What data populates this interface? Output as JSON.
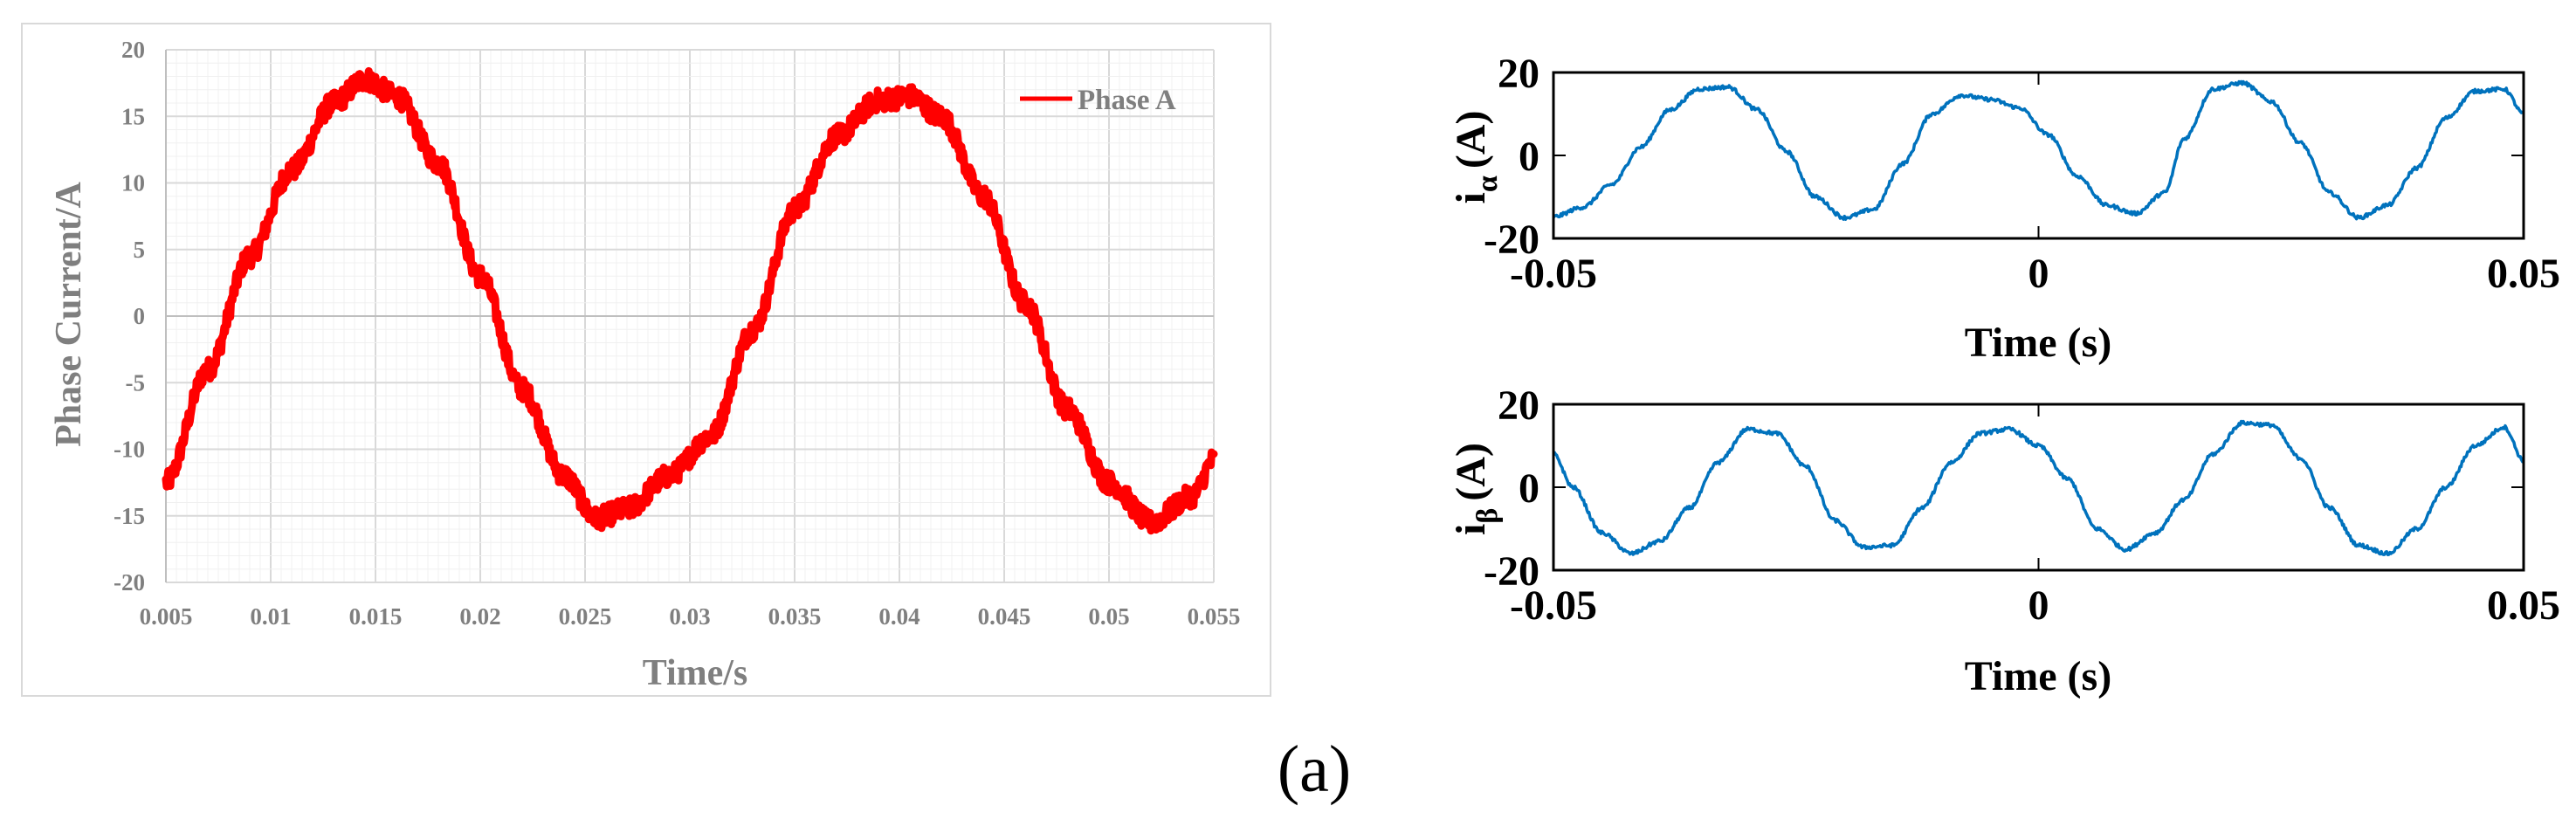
{
  "panel_label": "(a)",
  "chart_data": [
    {
      "type": "line",
      "title": "",
      "xlabel": "Time/s",
      "ylabel": "Phase Current/A",
      "xlim": [
        0.005,
        0.055
      ],
      "ylim": [
        -20,
        20
      ],
      "xticks": [
        "0.005",
        "0.01",
        "0.015",
        "0.02",
        "0.025",
        "0.03",
        "0.035",
        "0.04",
        "0.045",
        "0.05",
        "0.055"
      ],
      "yticks": [
        "20",
        "15",
        "10",
        "5",
        "0",
        "-5",
        "-10",
        "-15",
        "-20"
      ],
      "grid": true,
      "legend": {
        "position": "top-right",
        "entries": [
          "Phase A"
        ]
      },
      "series": [
        {
          "name": "Phase A",
          "color": "#ff0000",
          "x": [
            0.005,
            0.007,
            0.009,
            0.011,
            0.013,
            0.0145,
            0.016,
            0.018,
            0.02,
            0.022,
            0.024,
            0.0255,
            0.027,
            0.029,
            0.031,
            0.033,
            0.035,
            0.037,
            0.039,
            0.0405,
            0.042,
            0.044,
            0.046,
            0.048,
            0.05,
            0.052,
            0.054,
            0.055
          ],
          "values": [
            -12.5,
            -4,
            4.5,
            11,
            16,
            17.8,
            16.5,
            11.5,
            3,
            -5.5,
            -12,
            -15.2,
            -14.5,
            -12,
            -9,
            -1,
            8,
            13.5,
            16.2,
            16.5,
            15,
            9,
            1,
            -7,
            -12.5,
            -15.5,
            -13.5,
            -10.8
          ]
        }
      ]
    },
    {
      "type": "line",
      "title": "",
      "xlabel": "Time (s)",
      "ylabel": "i_α (A)",
      "ylabel_main": "i",
      "ylabel_sub": "α",
      "ylabel_unit": "(A)",
      "xlim": [
        -0.05,
        0.05
      ],
      "ylim": [
        -20,
        20
      ],
      "xticks": [
        "-0.05",
        "0",
        "0.05"
      ],
      "yticks": [
        "20",
        "0",
        "-20"
      ],
      "grid": false,
      "series": [
        {
          "name": "i_alpha",
          "color": "#0072bd",
          "x": [
            -0.05,
            -0.047,
            -0.044,
            -0.041,
            -0.038,
            -0.035,
            -0.032,
            -0.029,
            -0.026,
            -0.023,
            -0.02,
            -0.017,
            -0.014,
            -0.011,
            -0.008,
            -0.005,
            -0.002,
            0.001,
            0.004,
            0.007,
            0.01,
            0.013,
            0.015,
            0.018,
            0.021,
            0.024,
            0.027,
            0.03,
            0.033,
            0.036,
            0.039,
            0.042,
            0.045,
            0.048,
            0.05
          ],
          "values": [
            -14.8,
            -12.5,
            -7,
            2,
            11,
            16,
            16.5,
            11,
            1,
            -10,
            -15,
            -13,
            -2,
            10,
            14.5,
            13.5,
            11.5,
            5,
            -5,
            -12,
            -14,
            -9,
            4,
            16,
            17.5,
            13,
            3,
            -9,
            -15,
            -12,
            -3,
            9,
            15.5,
            16,
            10
          ]
        }
      ]
    },
    {
      "type": "line",
      "title": "",
      "xlabel": "Time (s)",
      "ylabel": "i_β (A)",
      "ylabel_main": "i",
      "ylabel_sub": "β",
      "ylabel_unit": "(A)",
      "xlim": [
        -0.05,
        0.05
      ],
      "ylim": [
        -20,
        20
      ],
      "xticks": [
        "-0.05",
        "0",
        "0.05"
      ],
      "yticks": [
        "20",
        "0",
        "-20"
      ],
      "grid": false,
      "series": [
        {
          "name": "i_beta",
          "color": "#0072bd",
          "x": [
            -0.05,
            -0.048,
            -0.045,
            -0.042,
            -0.039,
            -0.036,
            -0.033,
            -0.03,
            -0.027,
            -0.024,
            -0.021,
            -0.018,
            -0.015,
            -0.012,
            -0.009,
            -0.006,
            -0.003,
            0.0,
            0.003,
            0.006,
            0.009,
            0.012,
            0.015,
            0.018,
            0.021,
            0.024,
            0.027,
            0.03,
            0.033,
            0.036,
            0.039,
            0.042,
            0.045,
            0.048,
            0.05
          ],
          "values": [
            8,
            0,
            -11,
            -16,
            -13,
            -5,
            6,
            14,
            13,
            5,
            -8,
            -14.5,
            -14,
            -5,
            6,
            13,
            14,
            10,
            2,
            -10,
            -15,
            -11,
            -3,
            8,
            15.5,
            15,
            7,
            -5,
            -14,
            -16,
            -10,
            0,
            10,
            14.5,
            6.5
          ]
        }
      ]
    }
  ]
}
